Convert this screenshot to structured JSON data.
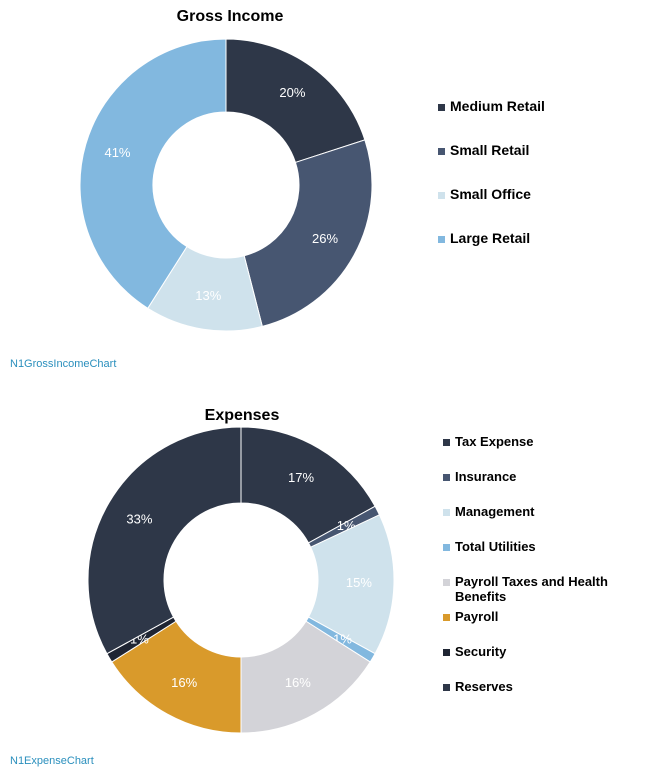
{
  "chart_data": [
    {
      "type": "pie",
      "title": "Gross Income",
      "caption": "N1GrossIncomeChart",
      "legend_position": "right",
      "slices": [
        {
          "name": "Medium Retail",
          "value": 20,
          "label": "20%",
          "color": "#2e3748"
        },
        {
          "name": "Small Retail",
          "value": 26,
          "label": "26%",
          "color": "#475671"
        },
        {
          "name": "Small Office",
          "value": 13,
          "label": "13%",
          "color": "#cfe2ec"
        },
        {
          "name": "Large Retail",
          "value": 41,
          "label": "41%",
          "color": "#82b8df"
        }
      ]
    },
    {
      "type": "pie",
      "title": "Expenses",
      "caption": "N1ExpenseChart",
      "legend_position": "right",
      "slices": [
        {
          "name": "Tax Expense",
          "value": 17,
          "label": "17%",
          "color": "#2e3748"
        },
        {
          "name": "Insurance",
          "value": 1,
          "label": "1%",
          "color": "#475671"
        },
        {
          "name": "Management",
          "value": 15,
          "label": "15%",
          "color": "#cfe2ec"
        },
        {
          "name": "Total Utilities",
          "value": 1,
          "label": "1%",
          "color": "#82b8df"
        },
        {
          "name": "Payroll Taxes and Health Benefits",
          "value": 16,
          "label": "16%",
          "color": "#d3d3d8"
        },
        {
          "name": "Payroll",
          "value": 16,
          "label": "16%",
          "color": "#d99a2b"
        },
        {
          "name": "Security",
          "value": 1,
          "label": "1%",
          "color": "#1f2533"
        },
        {
          "name": "Reserves",
          "value": 33,
          "label": "33%",
          "color": "#2e3748"
        }
      ]
    }
  ]
}
